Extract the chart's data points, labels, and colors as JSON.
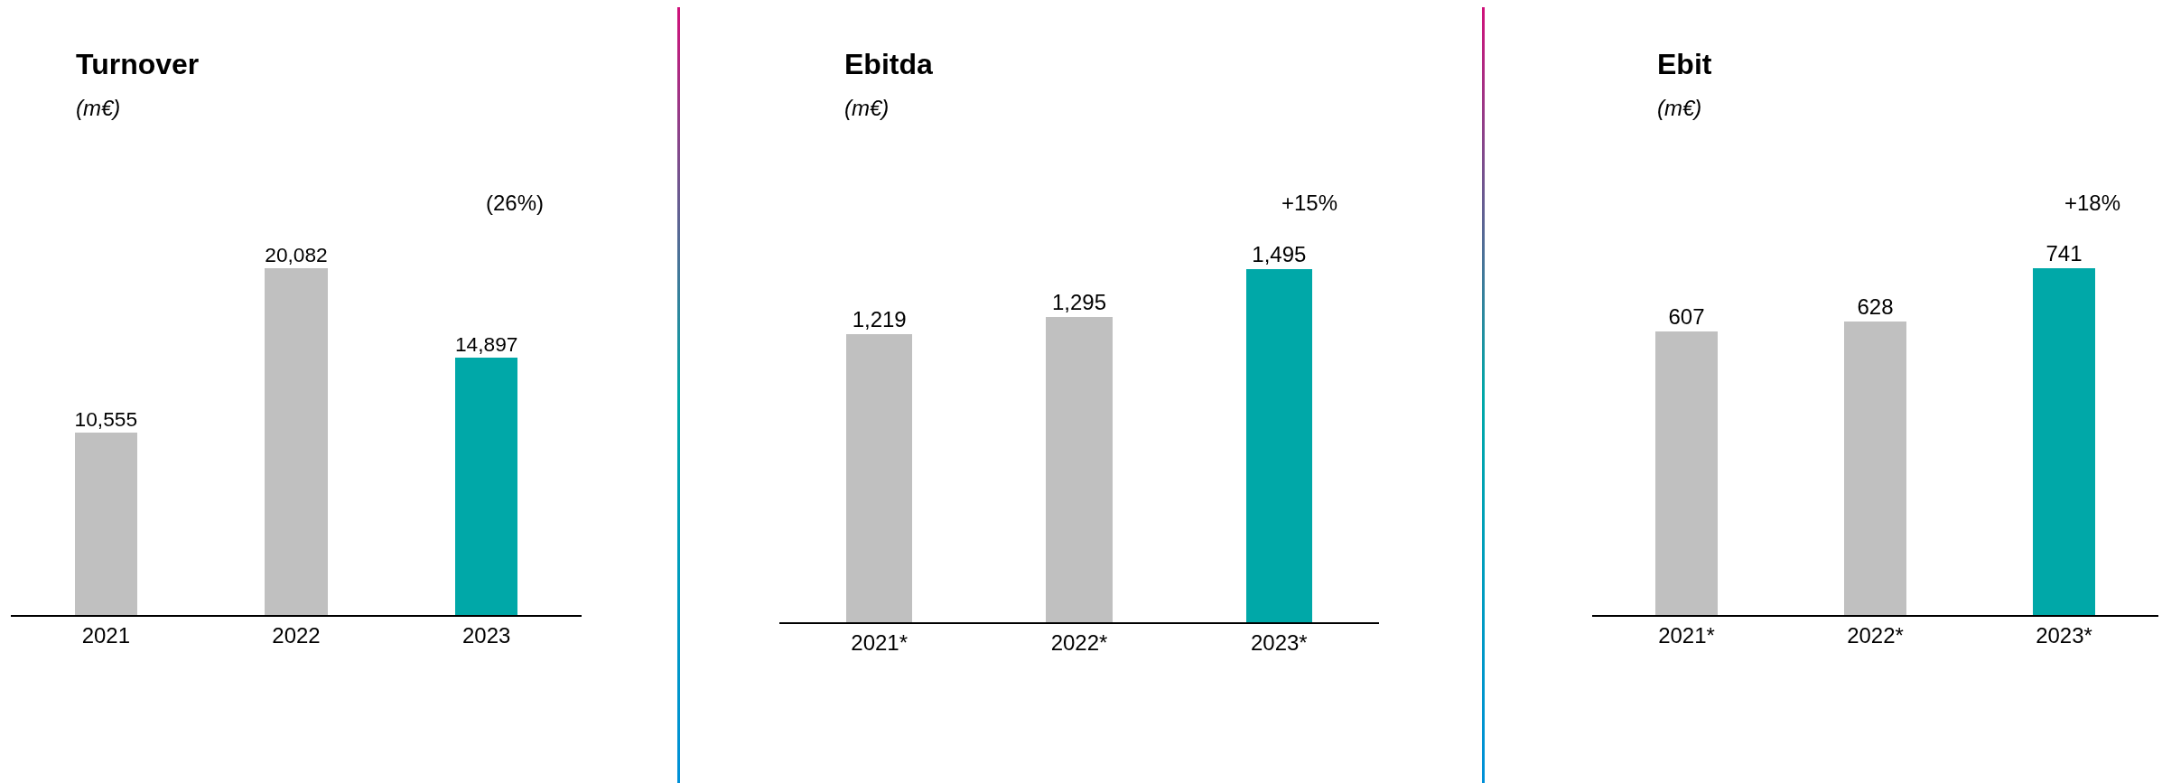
{
  "chart_data": [
    {
      "type": "bar",
      "title": "Turnover",
      "subtitle": "(m€)",
      "categories": [
        "2021",
        "2022",
        "2023"
      ],
      "values": [
        10555,
        20082,
        14897
      ],
      "colors": [
        "#c0c0c0",
        "#c0c0c0",
        "#00a8a8"
      ],
      "value_labels": [
        "10,555",
        "20,082",
        "14,897"
      ],
      "annotations": [
        "(26%)"
      ]
    },
    {
      "type": "bar",
      "title": "Ebitda",
      "subtitle": "(m€)",
      "categories": [
        "2021*",
        "2022*",
        "2023*"
      ],
      "values": [
        1219,
        1295,
        1495
      ],
      "colors": [
        "#c0c0c0",
        "#c0c0c0",
        "#00a8a8"
      ],
      "value_labels": [
        "1,219",
        "1,295",
        "1,495"
      ],
      "annotations": [
        "+15%"
      ]
    },
    {
      "type": "bar",
      "title": "Ebit",
      "subtitle": "(m€)",
      "categories": [
        "2021*",
        "2022*",
        "2023*"
      ],
      "values": [
        607,
        628,
        741
      ],
      "colors": [
        "#c0c0c0",
        "#c0c0c0",
        "#00a8a8"
      ],
      "data_labels": true,
      "annotations": [
        "+18%"
      ]
    }
  ]
}
